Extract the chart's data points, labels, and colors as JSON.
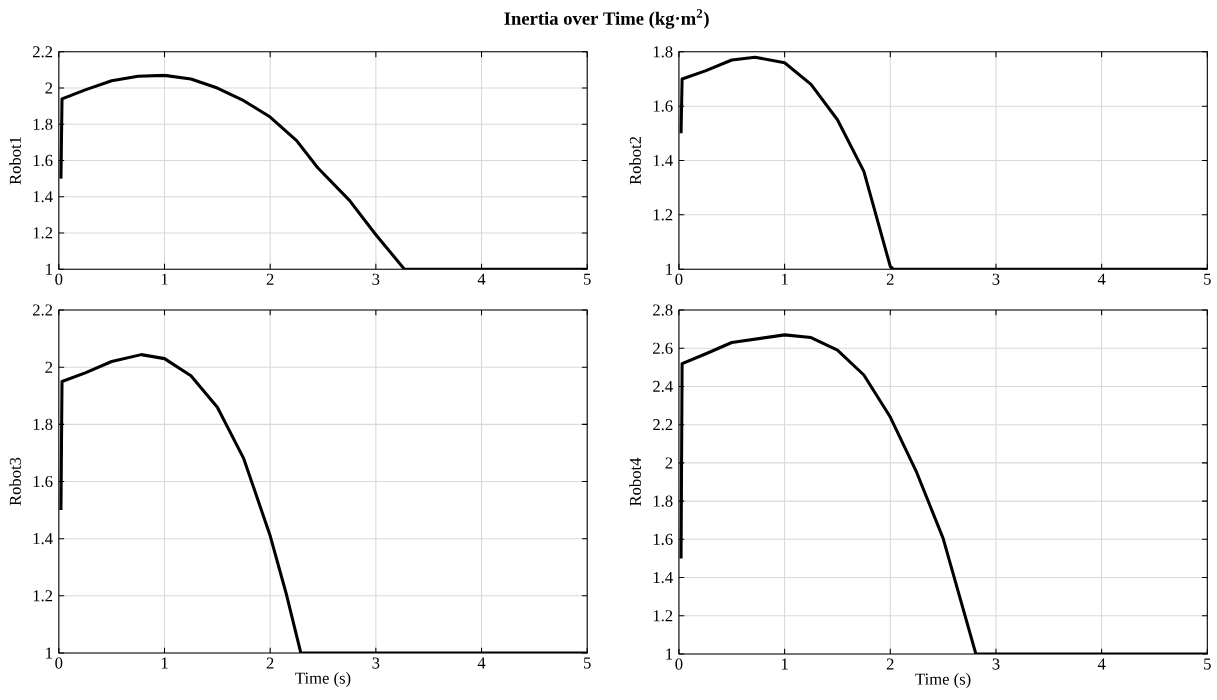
{
  "chart_data": [
    {
      "type": "line",
      "title": "Inertia over Time (kg·m$^{2}$)",
      "ylabel": "Robot1",
      "xlim": [
        0,
        5
      ],
      "ylim": [
        1,
        2.2
      ],
      "xticks": [
        0,
        1,
        2,
        3,
        4,
        5
      ],
      "yticks": [
        1,
        1.2,
        1.4,
        1.6,
        1.8,
        2,
        2.2
      ],
      "grid": true,
      "line_style": "solid",
      "series": [
        {
          "color": "#000000",
          "x": [
            0.02,
            0.03,
            0.25,
            0.5,
            0.75,
            1,
            1.25,
            1.5,
            1.75,
            2,
            2.25,
            2.45,
            2.75,
            3,
            3.27,
            5
          ],
          "values": [
            1.5,
            1.94,
            1.99,
            2.04,
            2.065,
            2.07,
            2.05,
            2.0,
            1.93,
            1.84,
            1.71,
            1.56,
            1.38,
            1.19,
            1,
            1
          ]
        }
      ]
    },
    {
      "type": "line",
      "ylabel": "Robot2",
      "xlim": [
        0,
        5
      ],
      "ylim": [
        1,
        1.8
      ],
      "xticks": [
        0,
        1,
        2,
        3,
        4,
        5
      ],
      "yticks": [
        1,
        1.2,
        1.4,
        1.6,
        1.8
      ],
      "grid": true,
      "line_style": "solid",
      "series": [
        {
          "color": "#000000",
          "x": [
            0.02,
            0.03,
            0.25,
            0.5,
            0.72,
            1,
            1.25,
            1.5,
            1.75,
            2,
            2.03,
            5
          ],
          "values": [
            1.5,
            1.7,
            1.73,
            1.77,
            1.78,
            1.76,
            1.68,
            1.55,
            1.36,
            1.01,
            1,
            1
          ]
        }
      ]
    },
    {
      "type": "line",
      "ylabel": "Robot3",
      "xlabel": "Time (s)",
      "xlim": [
        0,
        5
      ],
      "ylim": [
        1,
        2.2
      ],
      "xticks": [
        0,
        1,
        2,
        3,
        4,
        5
      ],
      "yticks": [
        1,
        1.2,
        1.4,
        1.6,
        1.8,
        2,
        2.2
      ],
      "grid": true,
      "line_style": "solid",
      "series": [
        {
          "color": "#000000",
          "x": [
            0.02,
            0.03,
            0.25,
            0.5,
            0.78,
            1,
            1.25,
            1.5,
            1.75,
            2,
            2.15,
            2.29,
            5
          ],
          "values": [
            1.5,
            1.95,
            1.98,
            2.02,
            2.044,
            2.03,
            1.97,
            1.86,
            1.68,
            1.41,
            1.21,
            1,
            1
          ]
        }
      ]
    },
    {
      "type": "line",
      "ylabel": "Robot4",
      "xlabel": "Time (s)",
      "xlim": [
        0,
        5
      ],
      "ylim": [
        1,
        2.8
      ],
      "xticks": [
        0,
        1,
        2,
        3,
        4,
        5
      ],
      "yticks": [
        1,
        1.2,
        1.4,
        1.6,
        1.8,
        2,
        2.2,
        2.4,
        2.6,
        2.8
      ],
      "grid": true,
      "line_style": "solid",
      "series": [
        {
          "color": "#000000",
          "x": [
            0.02,
            0.03,
            0.25,
            0.5,
            1,
            1.25,
            1.5,
            1.75,
            2,
            2.25,
            2.5,
            2.81,
            5
          ],
          "values": [
            1.5,
            2.52,
            2.57,
            2.63,
            2.67,
            2.656,
            2.59,
            2.46,
            2.24,
            1.95,
            1.605,
            1,
            1
          ]
        }
      ]
    }
  ]
}
